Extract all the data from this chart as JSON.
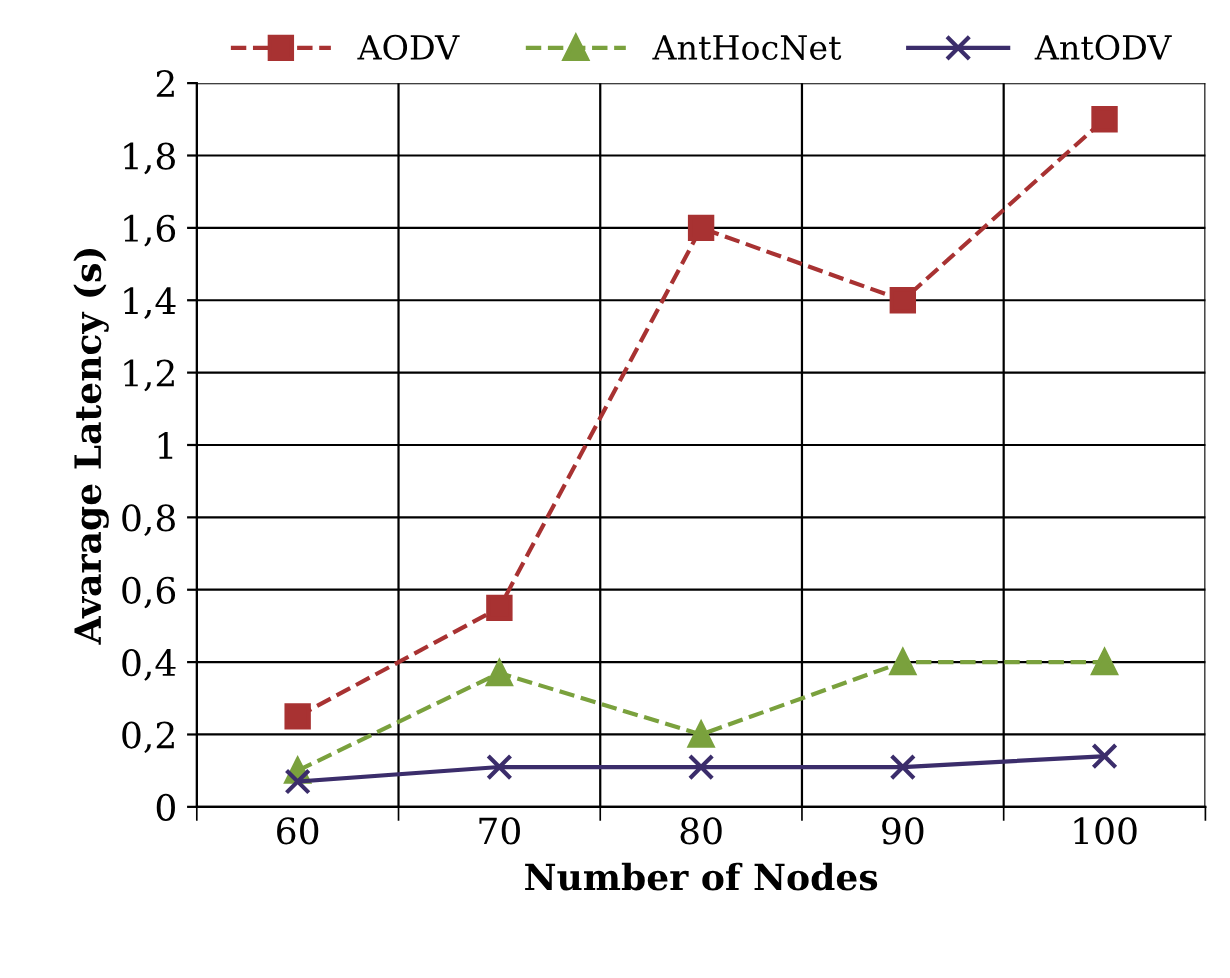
{
  "chart_data": {
    "type": "line",
    "xlabel": "Number of Nodes",
    "ylabel": "Avarage Latency (s)",
    "categories": [
      "60",
      "70",
      "80",
      "90",
      "100"
    ],
    "series": [
      {
        "name": "AODV",
        "color": "#a83232",
        "marker": "square",
        "line_style": "dashed",
        "values": [
          0.25,
          0.55,
          1.6,
          1.4,
          1.9
        ]
      },
      {
        "name": "AntHocNet",
        "color": "#7aa13d",
        "marker": "triangle",
        "line_style": "dashed",
        "values": [
          0.1,
          0.37,
          0.2,
          0.4,
          0.4
        ]
      },
      {
        "name": "AntODV",
        "color": "#3b2d6b",
        "marker": "cross",
        "line_style": "solid",
        "values": [
          0.07,
          0.11,
          0.11,
          0.11,
          0.14
        ]
      }
    ],
    "ylim": [
      0,
      2
    ],
    "yticks": [
      0,
      {
        "value": 0.2,
        "label": "0,2"
      },
      {
        "value": 0.4,
        "label": "0,4"
      },
      {
        "value": 0.6,
        "label": "0,6"
      },
      {
        "value": 0.8,
        "label": "0,8"
      },
      1,
      {
        "value": 1.2,
        "label": "1,2"
      },
      {
        "value": 1.4,
        "label": "1,4"
      },
      {
        "value": 1.6,
        "label": "1,6"
      },
      {
        "value": 1.8,
        "label": "1,8"
      },
      2
    ],
    "grid": true,
    "legend": "top"
  }
}
